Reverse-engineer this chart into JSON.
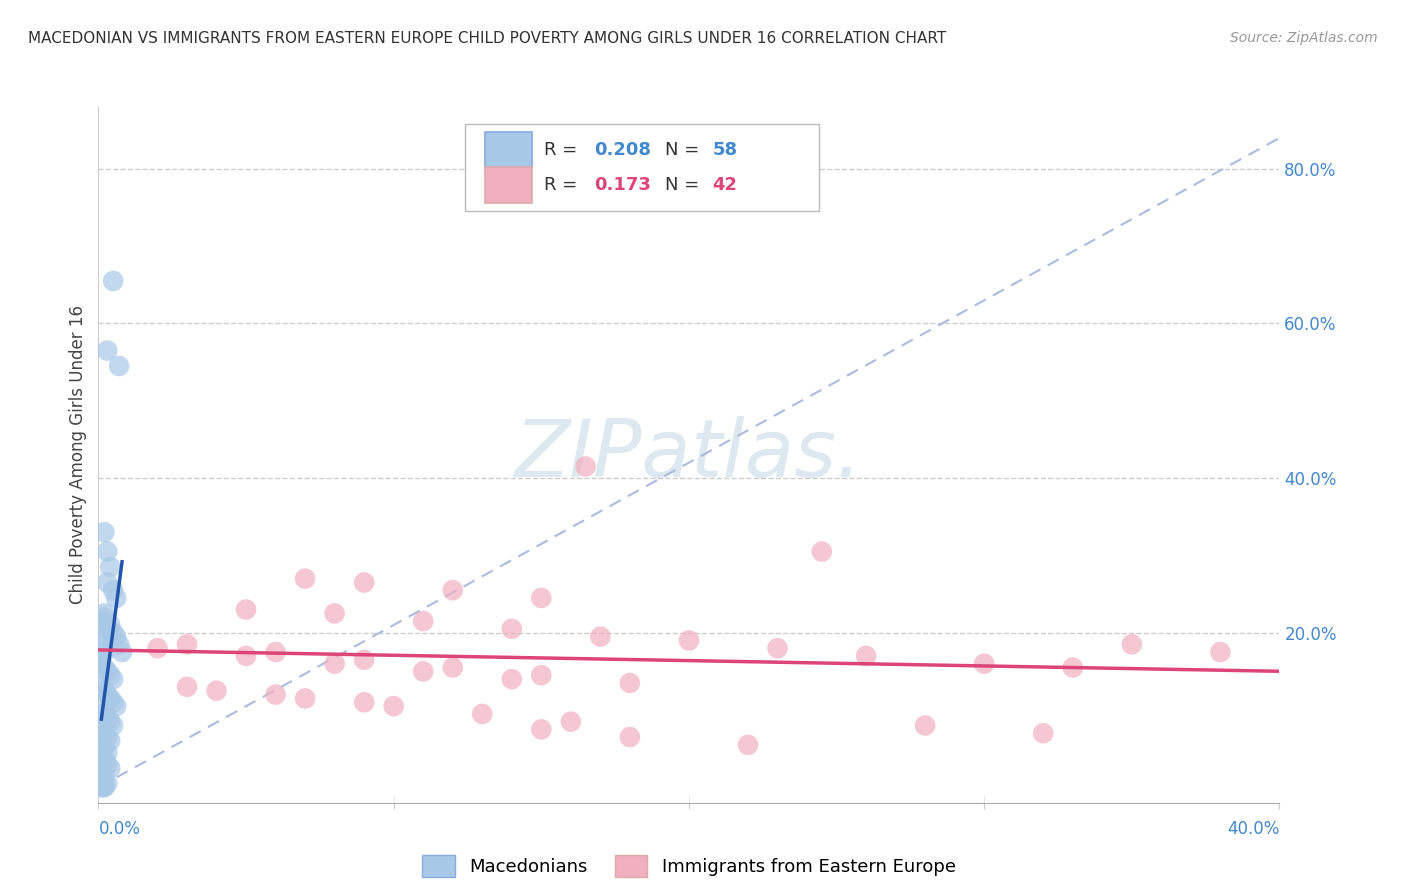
{
  "title": "MACEDONIAN VS IMMIGRANTS FROM EASTERN EUROPE CHILD POVERTY AMONG GIRLS UNDER 16 CORRELATION CHART",
  "source": "Source: ZipAtlas.com",
  "ylabel": "Child Poverty Among Girls Under 16",
  "xlim": [
    0.0,
    0.4
  ],
  "ylim": [
    -0.02,
    0.88
  ],
  "blue_R": 0.208,
  "blue_N": 58,
  "pink_R": 0.173,
  "pink_N": 42,
  "blue_color": "#a8c8e8",
  "pink_color": "#f0b0c0",
  "blue_line_color": "#2255aa",
  "pink_line_color": "#dd4477",
  "diagonal_color": "#aabbdd",
  "legend_label_blue": "Macedonians",
  "legend_label_pink": "Immigrants from Eastern Europe",
  "watermark_color": "#dde8f0",
  "blue_points_x": [
    0.005,
    0.003,
    0.007,
    0.002,
    0.003,
    0.004,
    0.003,
    0.005,
    0.006,
    0.002,
    0.004,
    0.005,
    0.006,
    0.007,
    0.008,
    0.001,
    0.002,
    0.003,
    0.004,
    0.005,
    0.001,
    0.002,
    0.003,
    0.004,
    0.005,
    0.006,
    0.001,
    0.002,
    0.003,
    0.004,
    0.005,
    0.001,
    0.002,
    0.003,
    0.004,
    0.001,
    0.002,
    0.003,
    0.001,
    0.002,
    0.003,
    0.004,
    0.001,
    0.002,
    0.001,
    0.002,
    0.003,
    0.001,
    0.002,
    0.001,
    0.002,
    0.001,
    0.002,
    0.001,
    0.002,
    0.001,
    0.003,
    0.003
  ],
  "blue_points_y": [
    0.655,
    0.565,
    0.545,
    0.33,
    0.305,
    0.285,
    0.265,
    0.255,
    0.245,
    0.225,
    0.21,
    0.2,
    0.195,
    0.185,
    0.175,
    0.165,
    0.155,
    0.15,
    0.145,
    0.14,
    0.13,
    0.125,
    0.12,
    0.115,
    0.11,
    0.105,
    0.1,
    0.095,
    0.09,
    0.085,
    0.08,
    0.075,
    0.07,
    0.065,
    0.06,
    0.055,
    0.05,
    0.045,
    0.04,
    0.035,
    0.03,
    0.025,
    0.02,
    0.015,
    0.012,
    0.008,
    0.005,
    0.003,
    0.001,
    0.0,
    0.0,
    0.185,
    0.175,
    0.16,
    0.22,
    0.215,
    0.205,
    0.195
  ],
  "pink_points_x": [
    0.165,
    0.245,
    0.07,
    0.09,
    0.12,
    0.15,
    0.05,
    0.08,
    0.11,
    0.14,
    0.17,
    0.03,
    0.06,
    0.09,
    0.12,
    0.15,
    0.18,
    0.04,
    0.07,
    0.1,
    0.13,
    0.16,
    0.02,
    0.05,
    0.08,
    0.11,
    0.14,
    0.03,
    0.06,
    0.09,
    0.2,
    0.23,
    0.26,
    0.3,
    0.33,
    0.15,
    0.18,
    0.22,
    0.35,
    0.38,
    0.28,
    0.32
  ],
  "pink_points_y": [
    0.415,
    0.305,
    0.27,
    0.265,
    0.255,
    0.245,
    0.23,
    0.225,
    0.215,
    0.205,
    0.195,
    0.185,
    0.175,
    0.165,
    0.155,
    0.145,
    0.135,
    0.125,
    0.115,
    0.105,
    0.095,
    0.085,
    0.18,
    0.17,
    0.16,
    0.15,
    0.14,
    0.13,
    0.12,
    0.11,
    0.19,
    0.18,
    0.17,
    0.16,
    0.155,
    0.075,
    0.065,
    0.055,
    0.185,
    0.175,
    0.08,
    0.07
  ]
}
